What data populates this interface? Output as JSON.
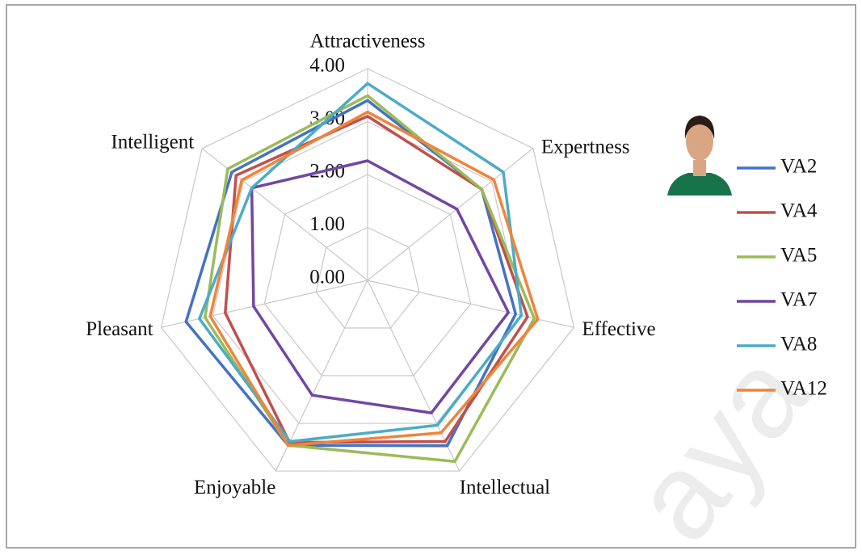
{
  "chart_data": {
    "type": "radar",
    "categories": [
      "Attractiveness",
      "Expertness",
      "Effective",
      "Intellectual",
      "Enjoyable",
      "Pleasant",
      "Intelligent"
    ],
    "ylim": [
      0,
      4
    ],
    "yticks": [
      {
        "value": 0,
        "label": "0.00"
      },
      {
        "value": 1,
        "label": "1.00"
      },
      {
        "value": 2,
        "label": "2.00"
      },
      {
        "value": 3,
        "label": "3.00"
      },
      {
        "value": 4,
        "label": "4.00"
      }
    ],
    "grid": true,
    "legend": "right",
    "series": [
      {
        "name": "VA2",
        "color": "#4472c4",
        "values": [
          3.4,
          2.76,
          2.87,
          3.47,
          3.46,
          3.52,
          3.28
        ]
      },
      {
        "name": "VA4",
        "color": "#c0504d",
        "values": [
          3.1,
          2.76,
          3.1,
          3.38,
          3.4,
          2.76,
          3.18
        ]
      },
      {
        "name": "VA5",
        "color": "#9bbb59",
        "values": [
          3.49,
          2.76,
          3.23,
          3.8,
          3.46,
          3.15,
          3.38
        ]
      },
      {
        "name": "VA7",
        "color": "#7047a3",
        "values": [
          2.26,
          2.16,
          2.73,
          2.78,
          2.41,
          2.21,
          2.8
        ]
      },
      {
        "name": "VA8",
        "color": "#4bacc6",
        "values": [
          3.72,
          3.28,
          2.98,
          3.04,
          3.38,
          3.26,
          2.8
        ]
      },
      {
        "name": "VA12",
        "color": "#f0843a",
        "values": [
          3.18,
          3.05,
          3.3,
          3.2,
          3.46,
          3.05,
          3.04
        ]
      }
    ]
  },
  "watermark": "aya"
}
